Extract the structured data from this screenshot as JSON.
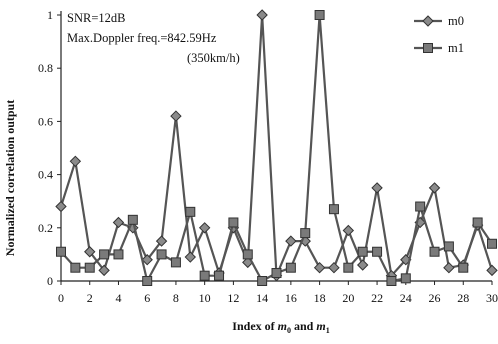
{
  "chart_data": {
    "type": "line",
    "ylabel": "Normalized correlation output",
    "xlabel_parts": [
      "Index of ",
      "m",
      "0",
      " and ",
      "m",
      "1"
    ],
    "annotations": [
      "SNR=12dB",
      "Max.Doppler freq.=842.59Hz",
      "(350km/h)"
    ],
    "xlim": [
      0,
      30
    ],
    "ylim": [
      0,
      1
    ],
    "x_ticks": [
      0,
      2,
      4,
      6,
      8,
      10,
      12,
      14,
      16,
      18,
      20,
      22,
      24,
      26,
      28,
      30
    ],
    "x_tick_labels": [
      "0",
      "2",
      "4",
      "6",
      "8",
      "10",
      "12",
      "14",
      "16",
      "18",
      "20",
      "22",
      "24",
      "26",
      "28",
      "30"
    ],
    "y_ticks": [
      0,
      0.2,
      0.4,
      0.6,
      0.8,
      1
    ],
    "y_tick_labels": [
      "0",
      "0.2",
      "0.4",
      "0.6",
      "0.8",
      "1"
    ],
    "grid": false,
    "legend_position": "top-right",
    "x": [
      0,
      1,
      2,
      3,
      4,
      5,
      6,
      7,
      8,
      9,
      10,
      11,
      12,
      13,
      14,
      15,
      16,
      17,
      18,
      19,
      20,
      21,
      22,
      23,
      24,
      25,
      26,
      27,
      28,
      29,
      30
    ],
    "series": [
      {
        "name": "m0",
        "marker": "diamond",
        "values": [
          0.28,
          0.45,
          0.11,
          0.04,
          0.22,
          0.2,
          0.08,
          0.15,
          0.62,
          0.09,
          0.2,
          0.03,
          0.2,
          0.07,
          1.0,
          0.02,
          0.15,
          0.15,
          0.05,
          0.05,
          0.19,
          0.06,
          0.35,
          0.02,
          0.08,
          0.22,
          0.35,
          0.05,
          0.06,
          0.21,
          0.04
        ]
      },
      {
        "name": "m1",
        "marker": "square",
        "values": [
          0.11,
          0.05,
          0.05,
          0.1,
          0.1,
          0.23,
          0.0,
          0.1,
          0.07,
          0.26,
          0.02,
          0.02,
          0.22,
          0.1,
          0.0,
          0.03,
          0.05,
          0.18,
          1.0,
          0.27,
          0.05,
          0.11,
          0.11,
          0.0,
          0.01,
          0.28,
          0.11,
          0.13,
          0.05,
          0.22,
          0.14
        ]
      }
    ]
  }
}
